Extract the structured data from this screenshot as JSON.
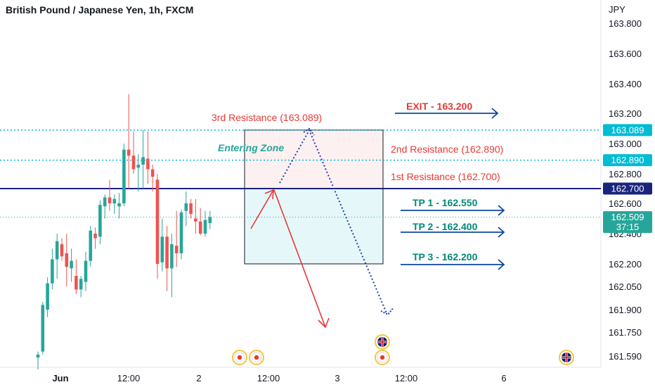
{
  "chart_data": {
    "type": "candlestick",
    "title": "British Pound / Japanese Yen, 1h, FXCM",
    "currency": "JPY",
    "colors": {
      "up": "#26a69a",
      "down": "#ef5350",
      "resistance": "#00bcd4",
      "entry_line": "#1a237e",
      "blue_arrow": "#0d47a1",
      "red": "#e53935",
      "tp_text": "#00897b"
    },
    "y_ticks": [
      "163.800",
      "163.600",
      "163.400",
      "163.200",
      "163.000",
      "162.800",
      "162.600",
      "162.400",
      "162.200",
      "162.050",
      "161.900",
      "161.750",
      "161.590"
    ],
    "x_ticks": [
      "Jun",
      "12:00",
      "2",
      "12:00",
      "3",
      "12:00",
      "6"
    ],
    "candles": [
      {
        "o": 161.58,
        "h": 161.62,
        "l": 161.5,
        "c": 161.6
      },
      {
        "o": 161.62,
        "h": 161.95,
        "l": 161.6,
        "c": 161.93
      },
      {
        "o": 161.9,
        "h": 162.11,
        "l": 161.85,
        "c": 162.07
      },
      {
        "o": 162.07,
        "h": 162.3,
        "l": 162.03,
        "c": 162.23
      },
      {
        "o": 162.23,
        "h": 162.4,
        "l": 162.1,
        "c": 162.35
      },
      {
        "o": 162.33,
        "h": 162.37,
        "l": 162.22,
        "c": 162.25
      },
      {
        "o": 162.27,
        "h": 162.4,
        "l": 162.05,
        "c": 162.18
      },
      {
        "o": 162.17,
        "h": 162.3,
        "l": 162.08,
        "c": 162.22
      },
      {
        "o": 162.12,
        "h": 162.23,
        "l": 162.0,
        "c": 162.03
      },
      {
        "o": 162.03,
        "h": 162.12,
        "l": 161.98,
        "c": 162.1
      },
      {
        "o": 162.08,
        "h": 162.28,
        "l": 162.02,
        "c": 162.22
      },
      {
        "o": 162.22,
        "h": 162.45,
        "l": 162.18,
        "c": 162.42
      },
      {
        "o": 162.4,
        "h": 162.44,
        "l": 162.3,
        "c": 162.37
      },
      {
        "o": 162.38,
        "h": 162.62,
        "l": 162.33,
        "c": 162.59
      },
      {
        "o": 162.58,
        "h": 162.66,
        "l": 162.5,
        "c": 162.64
      },
      {
        "o": 162.64,
        "h": 162.76,
        "l": 162.55,
        "c": 162.6
      },
      {
        "o": 162.6,
        "h": 162.66,
        "l": 162.53,
        "c": 162.63
      },
      {
        "o": 162.58,
        "h": 162.67,
        "l": 162.5,
        "c": 162.6
      },
      {
        "o": 162.6,
        "h": 163.0,
        "l": 162.58,
        "c": 162.96
      },
      {
        "o": 162.96,
        "h": 163.33,
        "l": 162.7,
        "c": 162.92
      },
      {
        "o": 162.92,
        "h": 163.08,
        "l": 162.8,
        "c": 162.83
      },
      {
        "o": 162.84,
        "h": 162.93,
        "l": 162.68,
        "c": 162.86
      },
      {
        "o": 162.86,
        "h": 163.09,
        "l": 162.7,
        "c": 162.91
      },
      {
        "o": 162.9,
        "h": 163.08,
        "l": 162.73,
        "c": 162.83
      },
      {
        "o": 162.83,
        "h": 162.86,
        "l": 162.68,
        "c": 162.78
      },
      {
        "o": 162.76,
        "h": 162.8,
        "l": 162.1,
        "c": 162.2
      },
      {
        "o": 162.21,
        "h": 162.5,
        "l": 162.15,
        "c": 162.38
      },
      {
        "o": 162.38,
        "h": 162.45,
        "l": 162.02,
        "c": 162.17
      },
      {
        "o": 162.17,
        "h": 162.4,
        "l": 161.98,
        "c": 162.33
      },
      {
        "o": 162.32,
        "h": 162.55,
        "l": 162.18,
        "c": 162.27
      },
      {
        "o": 162.27,
        "h": 162.56,
        "l": 162.23,
        "c": 162.54
      },
      {
        "o": 162.55,
        "h": 162.68,
        "l": 162.45,
        "c": 162.6
      },
      {
        "o": 162.6,
        "h": 162.63,
        "l": 162.5,
        "c": 162.53
      },
      {
        "o": 162.5,
        "h": 162.63,
        "l": 162.4,
        "c": 162.48
      },
      {
        "o": 162.48,
        "h": 162.57,
        "l": 162.39,
        "c": 162.4
      },
      {
        "o": 162.4,
        "h": 162.55,
        "l": 162.38,
        "c": 162.49
      },
      {
        "o": 162.47,
        "h": 162.55,
        "l": 162.43,
        "c": 162.51
      }
    ],
    "levels": [
      {
        "price": 163.089,
        "label": "3rd Resistance (163.089)"
      },
      {
        "price": 162.89,
        "label": "2nd Resistance (162.890)"
      },
      {
        "price": 162.7,
        "label": "1st Resistance (162.700)"
      }
    ],
    "zone_label": "Entering Zone",
    "exit_label": "EXIT - 163.200",
    "targets": [
      "TP 1 - 162.550",
      "TP 2 - 162.400",
      "TP 3 - 162.200"
    ],
    "price_labels": {
      "res3": "163.089",
      "res2": "162.890",
      "entry": "162.700",
      "current": "162.509",
      "countdown": "37:15"
    }
  }
}
